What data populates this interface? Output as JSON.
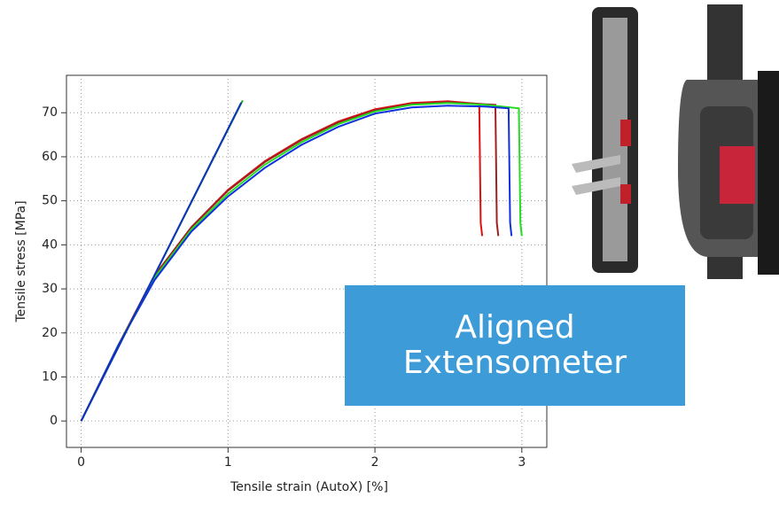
{
  "chart_data": {
    "type": "line",
    "xlabel": "Tensile strain (AutoX) [%]",
    "ylabel": "Tensile stress [MPa]",
    "annotation": "Aligned Extensometer",
    "xlim": [
      -0.1,
      3.17
    ],
    "ylim": [
      -6,
      78.5
    ],
    "xticks": [
      0,
      1,
      2,
      3
    ],
    "yticks": [
      0,
      10,
      20,
      30,
      40,
      50,
      60,
      70
    ],
    "grid": true,
    "series": [
      {
        "color": "#e01010",
        "x": [
          0,
          0.25,
          0.5,
          0.75,
          1.0,
          1.25,
          1.5,
          1.75,
          2.0,
          2.25,
          2.5,
          2.71,
          2.72,
          2.73
        ],
        "values": [
          0,
          17,
          33,
          44,
          52.5,
          59,
          64,
          68,
          70.8,
          72.2,
          72.6,
          72,
          45,
          42
        ]
      },
      {
        "color": "#a02020",
        "x": [
          0,
          0.25,
          0.5,
          0.75,
          1.0,
          1.25,
          1.5,
          1.75,
          2.0,
          2.25,
          2.5,
          2.82,
          2.83,
          2.84
        ],
        "values": [
          0,
          17,
          33,
          44,
          52.3,
          58.8,
          63.8,
          67.8,
          70.6,
          72,
          72.4,
          71.8,
          45,
          42
        ]
      },
      {
        "color": "#22dd22",
        "x": [
          0,
          0.25,
          0.5,
          0.75,
          1.0,
          1.25,
          1.5,
          1.75,
          2.0,
          2.25,
          2.5,
          2.75,
          2.98,
          2.99,
          3.0
        ],
        "values": [
          0,
          17,
          32.5,
          43.5,
          51.6,
          58.2,
          63.3,
          67.4,
          70.3,
          71.8,
          72.2,
          71.8,
          71,
          45,
          42
        ]
      },
      {
        "color": "#1030e0",
        "x": [
          0,
          0.25,
          0.5,
          0.75,
          1.0,
          1.25,
          1.5,
          1.75,
          2.0,
          2.25,
          2.5,
          2.75,
          2.91,
          2.92,
          2.93
        ],
        "values": [
          0,
          17,
          32,
          43,
          51,
          57.5,
          62.7,
          66.8,
          69.8,
          71.2,
          71.6,
          71.4,
          71,
          45,
          42
        ]
      },
      {
        "color": "#22aa22",
        "x": [
          0,
          1.1
        ],
        "values": [
          0,
          72.8
        ]
      },
      {
        "color": "#1030c0",
        "x": [
          0,
          1.09
        ],
        "values": [
          0,
          72.3
        ]
      }
    ]
  }
}
